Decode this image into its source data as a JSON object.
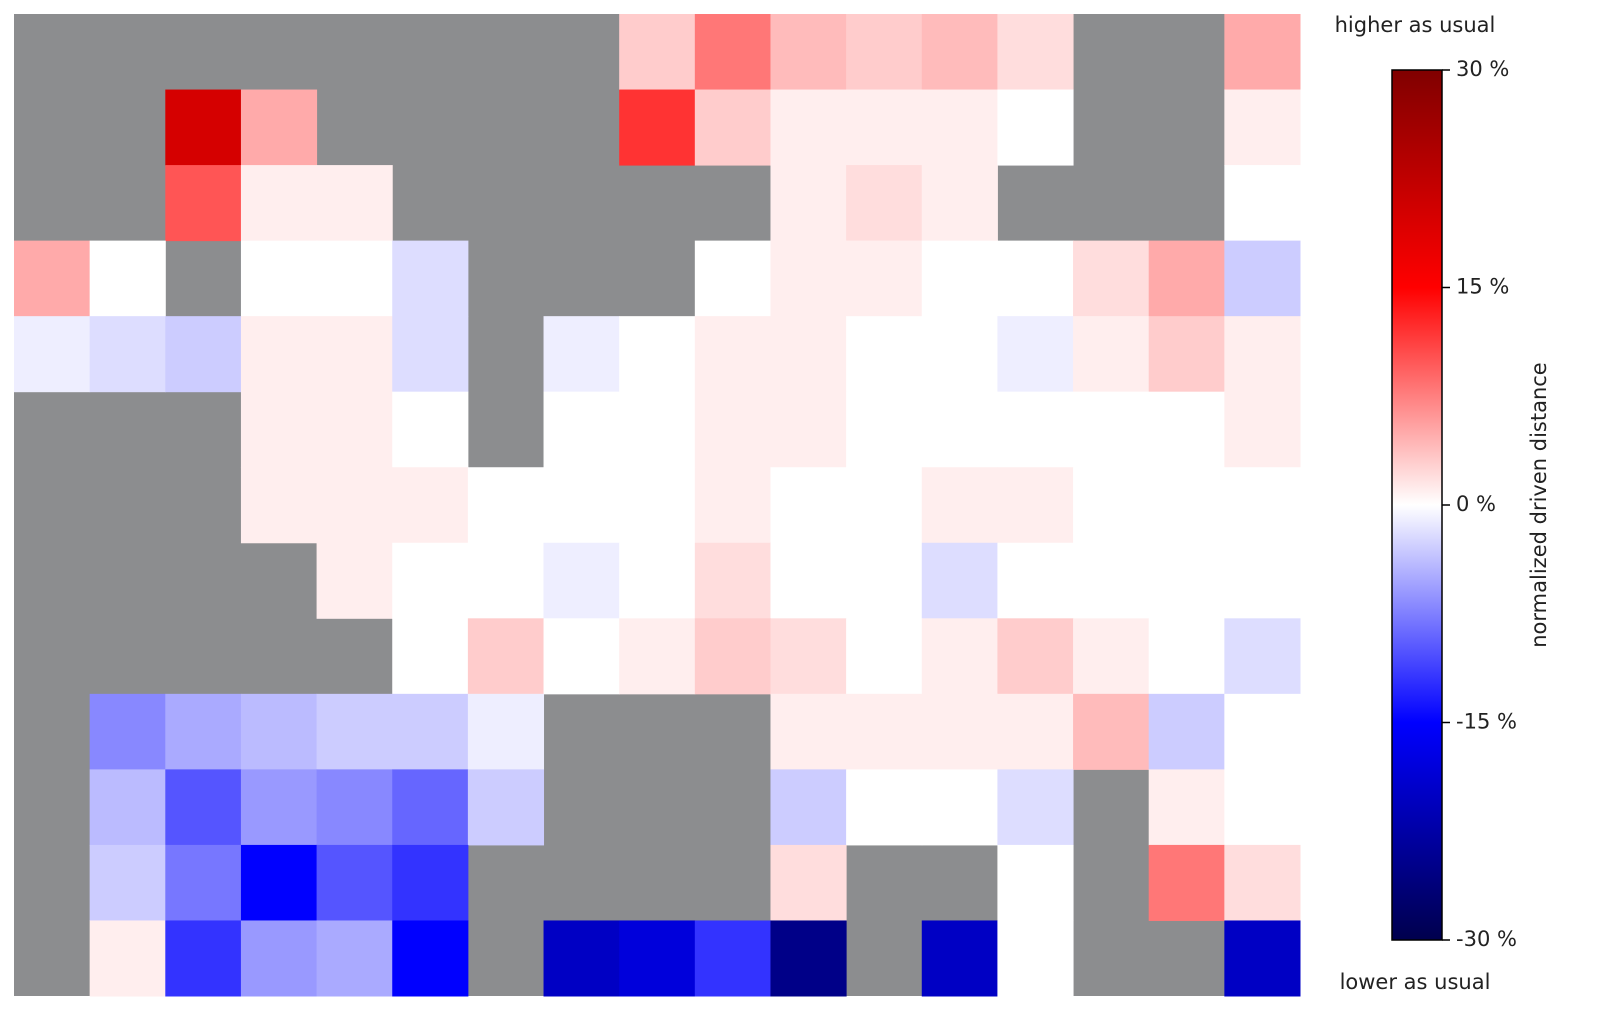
{
  "chart_data": {
    "type": "heatmap",
    "colormap": "seismic",
    "background_color": "#8c8d8f",
    "values": [
      [
        null,
        null,
        null,
        null,
        null,
        null,
        null,
        null,
        3,
        8,
        4,
        3,
        4,
        2,
        null,
        null,
        5
      ],
      [
        null,
        null,
        20,
        5,
        null,
        null,
        null,
        null,
        12,
        3,
        1,
        1,
        1,
        0,
        null,
        null,
        1
      ],
      [
        null,
        null,
        10,
        1,
        1,
        null,
        null,
        null,
        null,
        null,
        1,
        2,
        1,
        null,
        null,
        null,
        0
      ],
      [
        5,
        0,
        null,
        0,
        0,
        -2,
        null,
        null,
        null,
        0,
        1,
        1,
        0,
        0,
        2,
        5,
        -3
      ],
      [
        -1,
        -2,
        -3,
        1,
        1,
        -2,
        null,
        -1,
        0,
        1,
        1,
        0,
        0,
        -1,
        1,
        3,
        1
      ],
      [
        null,
        null,
        null,
        1,
        1,
        0,
        null,
        0,
        0,
        1,
        1,
        0,
        0,
        0,
        0,
        0,
        1
      ],
      [
        null,
        null,
        null,
        1,
        1,
        1,
        0,
        0,
        0,
        1,
        0,
        0,
        1,
        1,
        0,
        0,
        0
      ],
      [
        null,
        null,
        null,
        null,
        1,
        0,
        0,
        -1,
        0,
        2,
        0,
        0,
        -2,
        0,
        0,
        0,
        0
      ],
      [
        null,
        null,
        null,
        null,
        null,
        0,
        3,
        0,
        1,
        3,
        2,
        0,
        1,
        3,
        1,
        0,
        -2
      ],
      [
        null,
        -7,
        -5,
        -4,
        -3,
        -3,
        -1,
        null,
        null,
        null,
        1,
        1,
        1,
        1,
        4,
        -3,
        0
      ],
      [
        null,
        -4,
        -10,
        -6,
        -7,
        -9,
        -3,
        null,
        null,
        null,
        -3,
        0,
        0,
        -2,
        null,
        1,
        0
      ],
      [
        null,
        -3,
        -8,
        -15,
        -10,
        -12,
        null,
        null,
        null,
        null,
        2,
        null,
        null,
        0,
        null,
        8,
        2
      ],
      [
        null,
        1,
        -12,
        -6,
        -5,
        -15,
        null,
        -20,
        -18,
        -12,
        -25,
        null,
        -20,
        0,
        null,
        null,
        -20
      ]
    ],
    "colorbar": {
      "label": "normalized driven distance",
      "lim": [
        -30,
        30
      ],
      "ticks": [
        {
          "value": 30,
          "label": "30 %"
        },
        {
          "value": 15,
          "label": "15 %"
        },
        {
          "value": 0,
          "label": "0 %"
        },
        {
          "value": -15,
          "label": "-15 %"
        },
        {
          "value": -30,
          "label": "-30 %"
        }
      ]
    },
    "annotations": [
      "higher as usual",
      "lower as usual"
    ]
  }
}
